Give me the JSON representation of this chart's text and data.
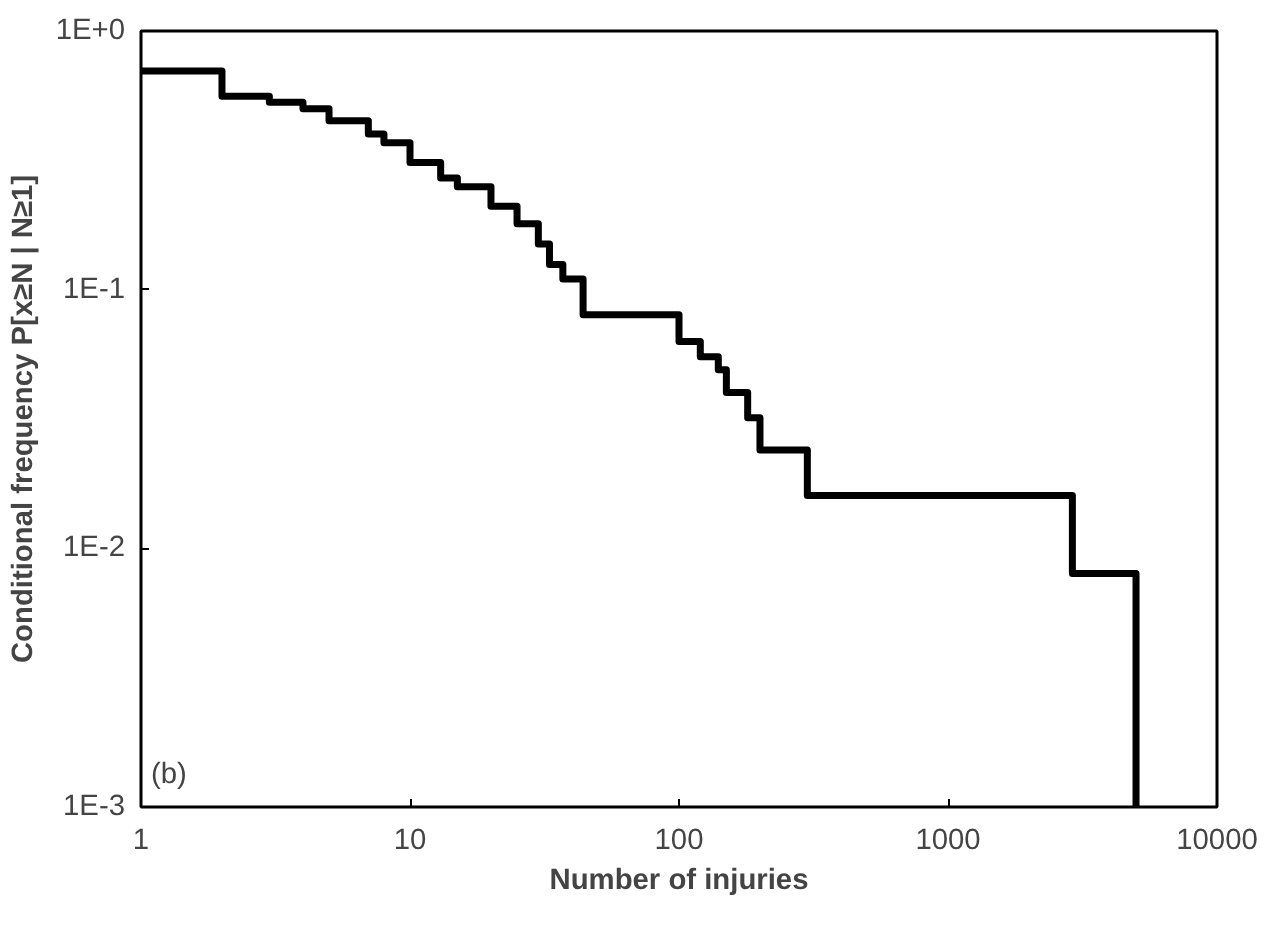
{
  "chart_data": {
    "type": "step",
    "xlabel": "Number of injuries",
    "ylabel": "Conditional frequency P[x≥N | N≥1]",
    "annotations": [
      "(b)"
    ],
    "x": [
      1,
      2,
      3,
      4,
      5,
      7,
      8,
      10,
      13,
      15,
      20,
      25,
      30,
      33,
      37,
      44,
      100,
      120,
      140,
      150,
      180,
      200,
      300,
      2900,
      5000
    ],
    "series": [
      {
        "color": "#000000",
        "values": [
          0.7,
          0.56,
          0.53,
          0.5,
          0.45,
          0.4,
          0.37,
          0.31,
          0.27,
          0.25,
          0.21,
          0.18,
          0.15,
          0.125,
          0.11,
          0.08,
          0.063,
          0.055,
          0.049,
          0.04,
          0.032,
          0.024,
          0.016,
          0.008,
          0.001
        ]
      }
    ],
    "log": "xy",
    "xlim": [
      1,
      10000
    ],
    "ylim": [
      0.001,
      1
    ],
    "xticks": [
      1,
      10,
      100,
      1000,
      10000
    ],
    "yticks": [
      {
        "value": 1,
        "label": "1E+0"
      },
      {
        "value": 0.1,
        "label": "1E-1"
      },
      {
        "value": 0.01,
        "label": "1E-2"
      },
      {
        "value": 0.001,
        "label": "1E-3"
      }
    ],
    "grid": false,
    "marker": "none",
    "line_style": "solid"
  }
}
